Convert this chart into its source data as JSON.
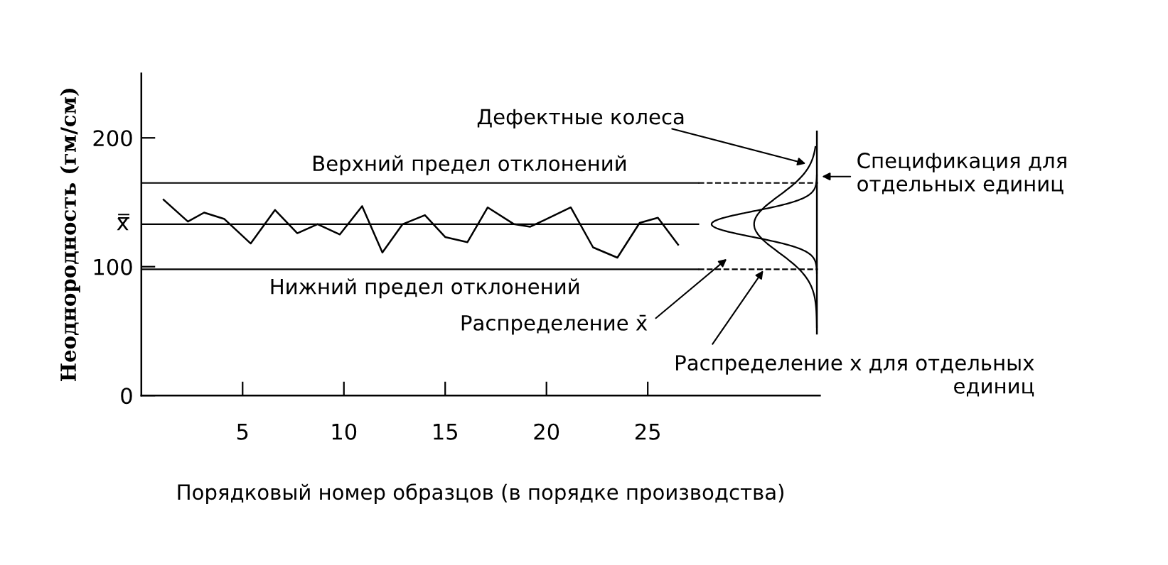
{
  "chart_data": {
    "type": "line",
    "xlabel": "Порядковый номер образцов (в порядке производства)",
    "ylabel": "Неоднородность (гм/см)",
    "x": [
      1.1,
      2.3,
      3.1,
      4.1,
      5.4,
      6.6,
      7.7,
      8.7,
      9.8,
      10.9,
      11.9,
      12.9,
      14.0,
      15.0,
      16.1,
      17.1,
      18.4,
      19.2,
      21.2,
      22.3,
      23.5,
      24.6,
      25.5,
      26.5
    ],
    "series": [
      {
        "color": "#000000",
        "values": [
          152,
          135,
          142,
          137,
          118,
          144,
          126,
          133,
          125,
          147,
          111,
          133,
          140,
          123,
          119,
          146,
          133,
          131,
          146,
          115,
          107,
          134,
          138,
          117
        ]
      }
    ],
    "xlim": [
      0,
      33.5
    ],
    "ylim": [
      0,
      250
    ],
    "xticks": [
      5,
      10,
      15,
      20,
      25
    ],
    "yticks": [
      0,
      100,
      200
    ],
    "grid": false,
    "legend": false,
    "marker": "none",
    "line_style": "solid",
    "ref_lines": [
      {
        "axis": "y",
        "value": 165,
        "label": "Верхний предел отклонений",
        "color": "#000000"
      },
      {
        "axis": "y",
        "value": 133,
        "label": "x̿",
        "color": "#000000"
      },
      {
        "axis": "y",
        "value": 98,
        "label": "Нижний предел отклонений",
        "color": "#000000"
      }
    ],
    "annotations": [
      "Дефектные колеса",
      "Спецификация для\nотдельных единиц",
      "Распределение x̄",
      "Распределение x для отдельных\nединиц"
    ]
  }
}
